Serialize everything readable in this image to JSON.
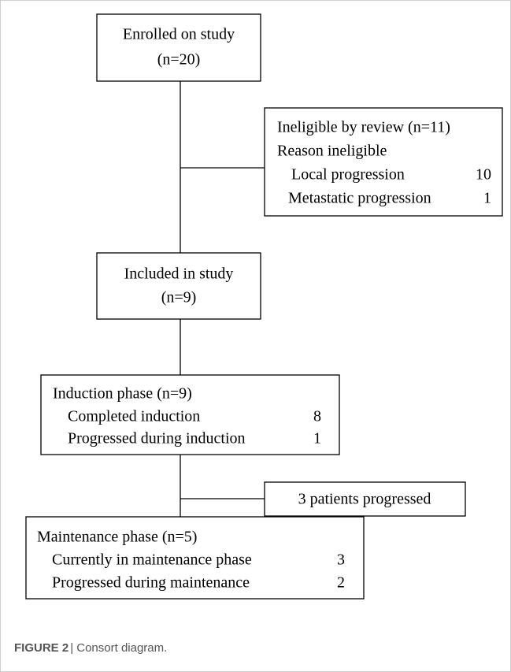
{
  "nodes": [
    {
      "lines": [
        "Enrolled on study",
        "(n=20)"
      ]
    },
    {
      "title": "Ineligible by review (n=11)",
      "subtitle": "Reason ineligible",
      "items": [
        {
          "label": "Local progression",
          "count": 10
        },
        {
          "label": "Metastatic progression",
          "count": 1
        }
      ]
    },
    {
      "lines": [
        "Included in study",
        "(n=9)"
      ]
    },
    {
      "title": "Induction phase (n=9)",
      "items": [
        {
          "label": "Completed induction",
          "count": 8
        },
        {
          "label": "Progressed during induction",
          "count": 1
        }
      ]
    },
    {
      "lines": [
        "3 patients progressed"
      ]
    },
    {
      "title": "Maintenance phase (n=5)",
      "items": [
        {
          "label": "Currently in maintenance phase",
          "count": 3
        },
        {
          "label": "Progressed during maintenance",
          "count": 2
        }
      ]
    }
  ],
  "caption": {
    "label": "FIGURE 2",
    "text": "| Consort diagram."
  }
}
